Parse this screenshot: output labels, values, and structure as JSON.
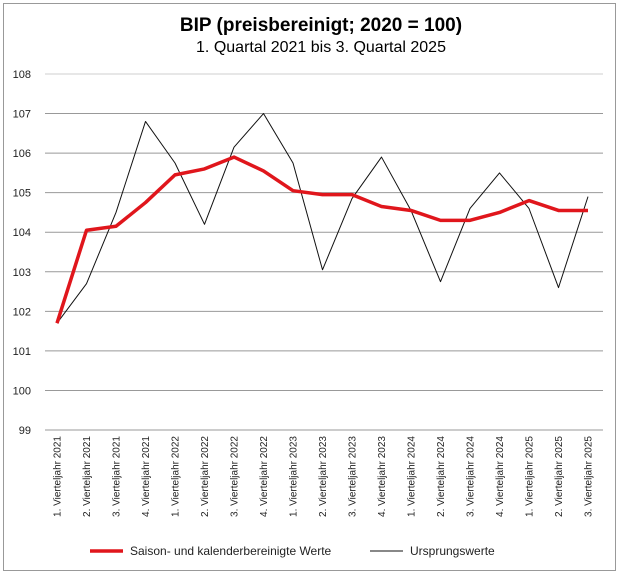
{
  "chart_data": {
    "type": "line",
    "title": "BIP (preisbereinigt; 2020 = 100)",
    "subtitle": "1. Quartal 2021 bis 3. Quartal 2025",
    "ylim": [
      99,
      108
    ],
    "yticks": [
      "99",
      "100",
      "101",
      "102",
      "103",
      "104",
      "105",
      "106",
      "107",
      "108"
    ],
    "grid": true,
    "legend_position": "bottom",
    "categories": [
      "1. Vierteljahr 2021",
      "2. Vierteljahr 2021",
      "3. Vierteljahr 2021",
      "4. Vierteljahr 2021",
      "1. Vierteljahr 2022",
      "2. Vierteljahr 2022",
      "3. Vierteljahr 2022",
      "4. Vierteljahr 2022",
      "1. Vierteljahr 2023",
      "2. Vierteljahr 2023",
      "3. Vierteljahr 2023",
      "4. Vierteljahr 2023",
      "1. Vierteljahr 2024",
      "2. Vierteljahr 2024",
      "3. Vierteljahr 2024",
      "4. Vierteljahr 2024",
      "1. Vierteljahr 2025",
      "2. Vierteljahr 2025",
      "3. Vierteljahr 2025"
    ],
    "series": [
      {
        "name": "Saison- und kalenderbereinigte Werte",
        "color": "#e0161c",
        "values": [
          101.7,
          104.05,
          104.15,
          104.75,
          105.45,
          105.6,
          105.9,
          105.55,
          105.05,
          104.95,
          104.95,
          104.65,
          104.55,
          104.3,
          104.3,
          104.5,
          104.8,
          104.55,
          104.55
        ]
      },
      {
        "name": "Ursprungswerte",
        "color": "#111111",
        "values": [
          101.7,
          102.7,
          104.5,
          106.8,
          105.75,
          104.2,
          106.15,
          107.0,
          105.75,
          103.05,
          104.85,
          105.9,
          104.55,
          102.75,
          104.6,
          105.5,
          104.6,
          102.6,
          104.9
        ]
      }
    ]
  }
}
